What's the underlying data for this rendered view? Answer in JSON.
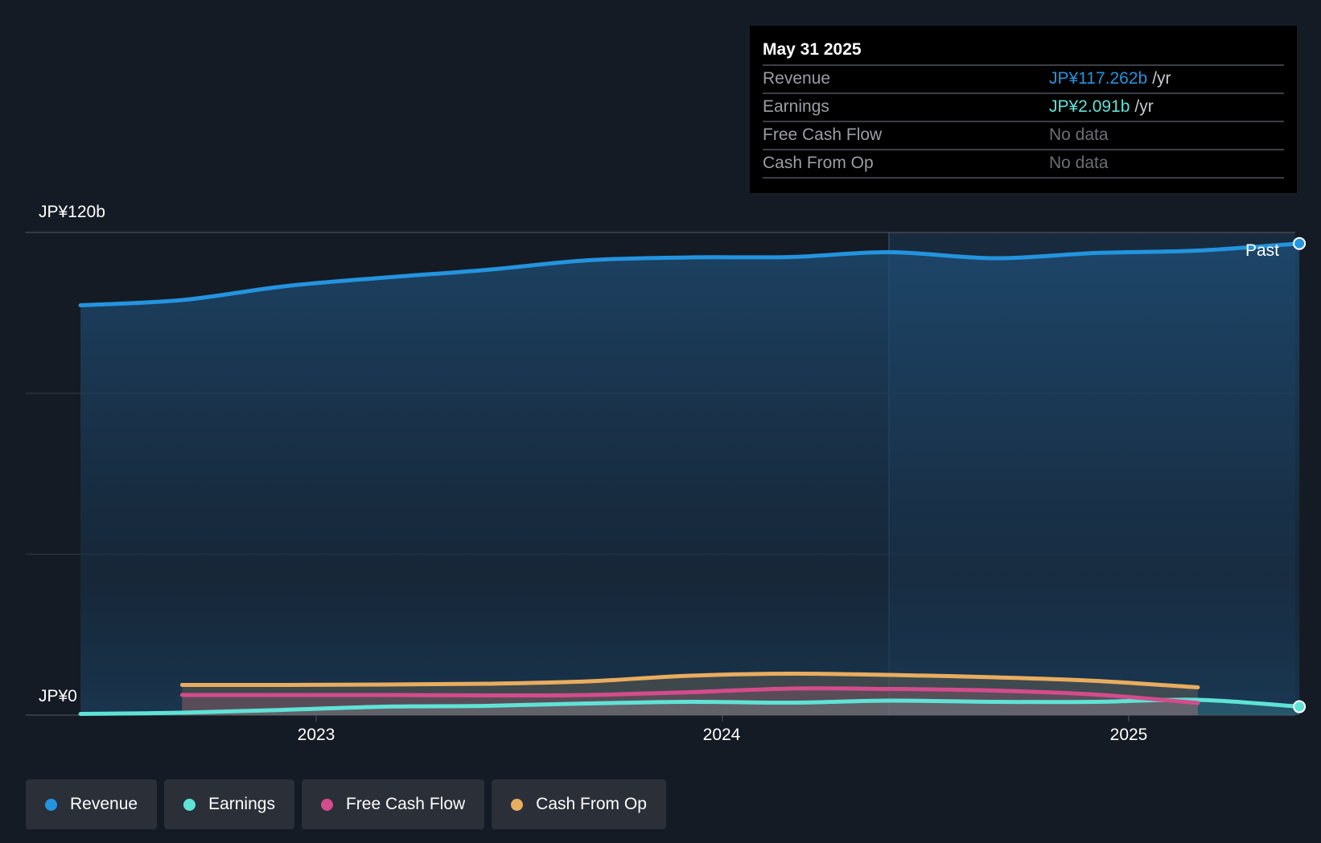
{
  "tooltip": {
    "date": "May 31 2025",
    "rows": [
      {
        "label": "Revenue",
        "value": "JP¥117.262b",
        "unit": "/yr"
      },
      {
        "label": "Earnings",
        "value": "JP¥2.091b",
        "unit": "/yr"
      },
      {
        "label": "Free Cash Flow",
        "value": "No data",
        "unit": ""
      },
      {
        "label": "Cash From Op",
        "value": "No data",
        "unit": ""
      }
    ]
  },
  "legend": {
    "items": [
      {
        "label": "Revenue",
        "color": "#2394df"
      },
      {
        "label": "Earnings",
        "color": "#5fe3d6"
      },
      {
        "label": "Free Cash Flow",
        "color": "#d44c8c"
      },
      {
        "label": "Cash From Op",
        "color": "#e9ad5f"
      }
    ]
  },
  "chart_data": {
    "type": "area",
    "ylim": [
      0,
      120
    ],
    "y_tick_labels": [
      "JP¥120b",
      "JP¥0"
    ],
    "x_tick_labels": [
      "2023",
      "2024",
      "2025"
    ],
    "x_ticks": [
      2023.0,
      2024.0,
      2025.0
    ],
    "xlim": [
      2022.3,
      2025.42
    ],
    "past_label": "Past",
    "past_divider_x": 2024.41,
    "grid": true,
    "legend_position": "bottom-left",
    "series": [
      {
        "name": "Revenue",
        "color": "#2394df",
        "x": [
          2022.42,
          2022.67,
          2022.92,
          2023.17,
          2023.42,
          2023.67,
          2023.92,
          2024.17,
          2024.41,
          2024.67,
          2024.92,
          2025.17,
          2025.42
        ],
        "y": [
          101.9,
          103.2,
          106.6,
          108.8,
          110.7,
          113.1,
          113.8,
          113.9,
          115.1,
          113.6,
          114.9,
          115.5,
          117.262
        ]
      },
      {
        "name": "Earnings",
        "color": "#5fe3d6",
        "x": [
          2022.42,
          2022.67,
          2022.92,
          2023.17,
          2023.42,
          2023.67,
          2023.92,
          2024.17,
          2024.41,
          2024.67,
          2024.92,
          2025.17,
          2025.42
        ],
        "y": [
          0.3,
          0.6,
          1.3,
          2.1,
          2.3,
          2.9,
          3.3,
          3.1,
          3.6,
          3.3,
          3.3,
          3.8,
          2.091
        ]
      },
      {
        "name": "Free Cash Flow",
        "color": "#d44c8c",
        "x": [
          2022.67,
          2022.92,
          2023.17,
          2023.42,
          2023.67,
          2023.92,
          2024.17,
          2024.41,
          2024.67,
          2024.92,
          2025.17
        ],
        "y": [
          5.0,
          5.0,
          5.0,
          4.9,
          5.0,
          5.7,
          6.6,
          6.5,
          6.1,
          5.1,
          3.0
        ]
      },
      {
        "name": "Cash From Op",
        "color": "#e9ad5f",
        "x": [
          2022.67,
          2022.92,
          2023.17,
          2023.42,
          2023.67,
          2023.92,
          2024.17,
          2024.41,
          2024.67,
          2024.92,
          2025.17
        ],
        "y": [
          7.5,
          7.5,
          7.6,
          7.8,
          8.4,
          9.8,
          10.3,
          10.0,
          9.4,
          8.5,
          6.9
        ]
      }
    ]
  }
}
